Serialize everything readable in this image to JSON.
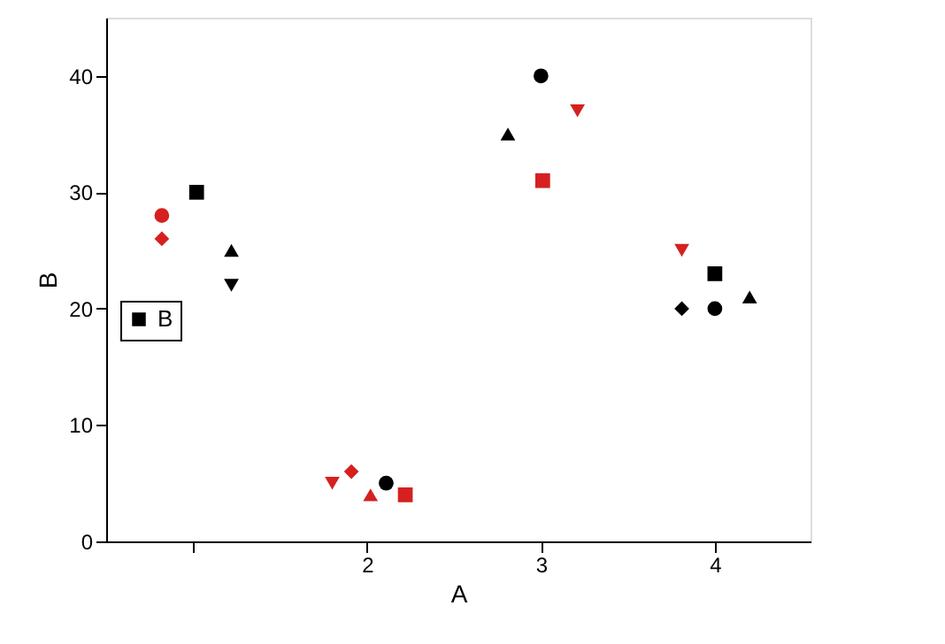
{
  "chart_data": {
    "type": "scatter",
    "xlabel": "A",
    "ylabel": "B",
    "xlim": [
      0.5,
      4.55
    ],
    "ylim": [
      0,
      45
    ],
    "xticks": [
      {
        "value": 1,
        "label": null
      },
      2,
      3,
      4
    ],
    "yticks": [
      0,
      10,
      20,
      30,
      40
    ],
    "grid": false,
    "legend": "left",
    "series": [
      {
        "color": "#d62020",
        "marker": "circle",
        "x": [
          0.82
        ],
        "values": [
          28
        ]
      },
      {
        "color": "#d62020",
        "marker": "diamond",
        "x": [
          0.82,
          1.91
        ],
        "values": [
          26,
          6
        ]
      },
      {
        "name": "B",
        "color": "#000000",
        "marker": "square",
        "x": [
          1.02,
          4.0
        ],
        "values": [
          30,
          23
        ]
      },
      {
        "color": "#000000",
        "marker": "triangle",
        "x": [
          1.22,
          2.81,
          4.2
        ],
        "values": [
          25,
          35,
          21
        ]
      },
      {
        "color": "#000000",
        "marker": "triangle-down",
        "x": [
          1.22
        ],
        "values": [
          22
        ]
      },
      {
        "color": "#d62020",
        "marker": "triangle-down",
        "x": [
          1.8,
          3.21,
          3.81
        ],
        "values": [
          5,
          37,
          25
        ]
      },
      {
        "color": "#d62020",
        "marker": "triangle",
        "x": [
          2.02
        ],
        "values": [
          4
        ]
      },
      {
        "color": "#000000",
        "marker": "circle",
        "x": [
          2.11,
          3.0,
          4.0
        ],
        "values": [
          5,
          40,
          20
        ]
      },
      {
        "color": "#d62020",
        "marker": "square",
        "x": [
          2.22,
          3.01
        ],
        "values": [
          4,
          31
        ]
      },
      {
        "color": "#000000",
        "marker": "diamond",
        "x": [
          3.81
        ],
        "values": [
          20
        ]
      }
    ]
  }
}
